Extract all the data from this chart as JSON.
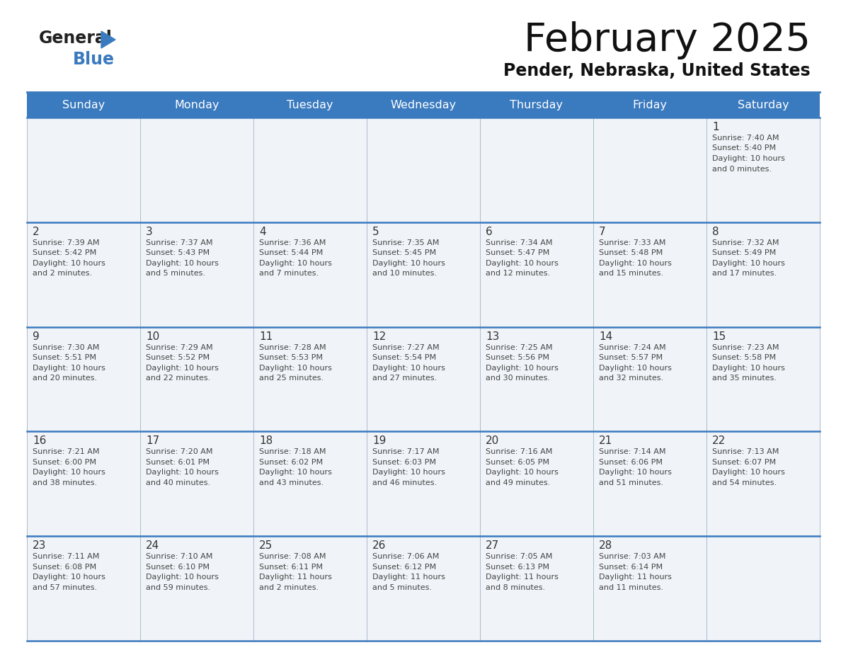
{
  "title": "February 2025",
  "subtitle": "Pender, Nebraska, United States",
  "header_bg": "#3a7abf",
  "header_text_color": "#ffffff",
  "cell_bg": "#f0f4f8",
  "cell_bg_empty": "#e8eef4",
  "day_number_color": "#333333",
  "info_text_color": "#444444",
  "border_color": "#3a7abf",
  "grid_color": "#aabbcc",
  "days_of_week": [
    "Sunday",
    "Monday",
    "Tuesday",
    "Wednesday",
    "Thursday",
    "Friday",
    "Saturday"
  ],
  "calendar": [
    [
      null,
      null,
      null,
      null,
      null,
      null,
      {
        "day": 1,
        "sunrise": "7:40 AM",
        "sunset": "5:40 PM",
        "daylight": "10 hours and 0 minutes."
      }
    ],
    [
      {
        "day": 2,
        "sunrise": "7:39 AM",
        "sunset": "5:42 PM",
        "daylight": "10 hours and 2 minutes."
      },
      {
        "day": 3,
        "sunrise": "7:37 AM",
        "sunset": "5:43 PM",
        "daylight": "10 hours and 5 minutes."
      },
      {
        "day": 4,
        "sunrise": "7:36 AM",
        "sunset": "5:44 PM",
        "daylight": "10 hours and 7 minutes."
      },
      {
        "day": 5,
        "sunrise": "7:35 AM",
        "sunset": "5:45 PM",
        "daylight": "10 hours and 10 minutes."
      },
      {
        "day": 6,
        "sunrise": "7:34 AM",
        "sunset": "5:47 PM",
        "daylight": "10 hours and 12 minutes."
      },
      {
        "day": 7,
        "sunrise": "7:33 AM",
        "sunset": "5:48 PM",
        "daylight": "10 hours and 15 minutes."
      },
      {
        "day": 8,
        "sunrise": "7:32 AM",
        "sunset": "5:49 PM",
        "daylight": "10 hours and 17 minutes."
      }
    ],
    [
      {
        "day": 9,
        "sunrise": "7:30 AM",
        "sunset": "5:51 PM",
        "daylight": "10 hours and 20 minutes."
      },
      {
        "day": 10,
        "sunrise": "7:29 AM",
        "sunset": "5:52 PM",
        "daylight": "10 hours and 22 minutes."
      },
      {
        "day": 11,
        "sunrise": "7:28 AM",
        "sunset": "5:53 PM",
        "daylight": "10 hours and 25 minutes."
      },
      {
        "day": 12,
        "sunrise": "7:27 AM",
        "sunset": "5:54 PM",
        "daylight": "10 hours and 27 minutes."
      },
      {
        "day": 13,
        "sunrise": "7:25 AM",
        "sunset": "5:56 PM",
        "daylight": "10 hours and 30 minutes."
      },
      {
        "day": 14,
        "sunrise": "7:24 AM",
        "sunset": "5:57 PM",
        "daylight": "10 hours and 32 minutes."
      },
      {
        "day": 15,
        "sunrise": "7:23 AM",
        "sunset": "5:58 PM",
        "daylight": "10 hours and 35 minutes."
      }
    ],
    [
      {
        "day": 16,
        "sunrise": "7:21 AM",
        "sunset": "6:00 PM",
        "daylight": "10 hours and 38 minutes."
      },
      {
        "day": 17,
        "sunrise": "7:20 AM",
        "sunset": "6:01 PM",
        "daylight": "10 hours and 40 minutes."
      },
      {
        "day": 18,
        "sunrise": "7:18 AM",
        "sunset": "6:02 PM",
        "daylight": "10 hours and 43 minutes."
      },
      {
        "day": 19,
        "sunrise": "7:17 AM",
        "sunset": "6:03 PM",
        "daylight": "10 hours and 46 minutes."
      },
      {
        "day": 20,
        "sunrise": "7:16 AM",
        "sunset": "6:05 PM",
        "daylight": "10 hours and 49 minutes."
      },
      {
        "day": 21,
        "sunrise": "7:14 AM",
        "sunset": "6:06 PM",
        "daylight": "10 hours and 51 minutes."
      },
      {
        "day": 22,
        "sunrise": "7:13 AM",
        "sunset": "6:07 PM",
        "daylight": "10 hours and 54 minutes."
      }
    ],
    [
      {
        "day": 23,
        "sunrise": "7:11 AM",
        "sunset": "6:08 PM",
        "daylight": "10 hours and 57 minutes."
      },
      {
        "day": 24,
        "sunrise": "7:10 AM",
        "sunset": "6:10 PM",
        "daylight": "10 hours and 59 minutes."
      },
      {
        "day": 25,
        "sunrise": "7:08 AM",
        "sunset": "6:11 PM",
        "daylight": "11 hours and 2 minutes."
      },
      {
        "day": 26,
        "sunrise": "7:06 AM",
        "sunset": "6:12 PM",
        "daylight": "11 hours and 5 minutes."
      },
      {
        "day": 27,
        "sunrise": "7:05 AM",
        "sunset": "6:13 PM",
        "daylight": "11 hours and 8 minutes."
      },
      {
        "day": 28,
        "sunrise": "7:03 AM",
        "sunset": "6:14 PM",
        "daylight": "11 hours and 11 minutes."
      },
      null
    ]
  ]
}
